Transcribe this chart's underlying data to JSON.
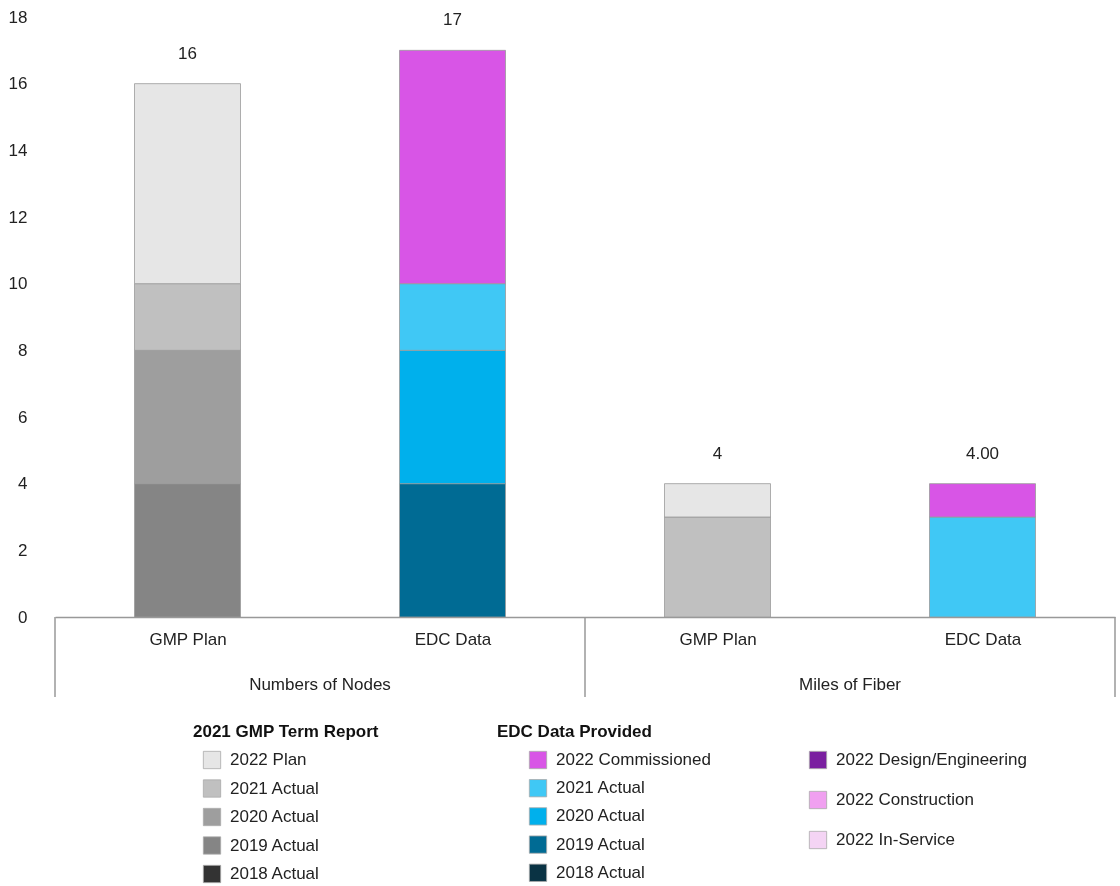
{
  "chart_data": {
    "type": "bar",
    "stacked": true,
    "categories": [
      "GMP Plan",
      "EDC Data",
      "GMP Plan",
      "EDC Data"
    ],
    "series": [
      {
        "name": "2018 Actual",
        "color": "#333333",
        "values": [
          null,
          null,
          null,
          null
        ]
      },
      {
        "name": "2019 Actual",
        "color": "#858585",
        "values": [
          4,
          null,
          null,
          null
        ]
      },
      {
        "name": "2020 Actual",
        "color": "#9e9e9e",
        "values": [
          4,
          null,
          null,
          null
        ]
      },
      {
        "name": "2021 Actual",
        "color": "#c0c0c0",
        "values": [
          2,
          null,
          3,
          null
        ]
      },
      {
        "name": "2022 Plan",
        "color": "#e6e6e6",
        "values": [
          6,
          null,
          1,
          null
        ]
      },
      {
        "name": "2018 Actual",
        "color": "#0a3344",
        "values": [
          null,
          null,
          null,
          null
        ]
      },
      {
        "name": "2019 Actual",
        "color": "#006b94",
        "values": [
          null,
          4,
          null,
          null
        ]
      },
      {
        "name": "2020 Actual",
        "color": "#00b0ec",
        "values": [
          null,
          4,
          null,
          null
        ]
      },
      {
        "name": "2021 Actual",
        "color": "#40c8f5",
        "values": [
          null,
          2,
          null,
          3
        ]
      },
      {
        "name": "2022 Commissioned",
        "color": "#d855e6",
        "values": [
          null,
          7,
          null,
          1
        ]
      },
      {
        "name": "2022 Design/Engineering",
        "color": "#7a1fa0",
        "values": [
          null,
          null,
          null,
          null
        ]
      },
      {
        "name": "2022 Construction",
        "color": "#f0a0f0",
        "values": [
          null,
          null,
          null,
          null
        ]
      },
      {
        "name": "2022 In-Service",
        "color": "#f4d4f4",
        "values": [
          null,
          null,
          null,
          null
        ]
      }
    ],
    "totals": [
      "16",
      "17",
      "4",
      "4.00"
    ],
    "ylim": [
      0,
      18
    ],
    "yticks": [
      0,
      2,
      4,
      6,
      8,
      10,
      12,
      14,
      16,
      18
    ],
    "legend_title": "2021 GMP Term Report",
    "annotations": [
      "EDC Data Provided",
      "Numbers of Nodes",
      "Miles of Fiber"
    ],
    "legend": "bottom",
    "grid": false
  }
}
